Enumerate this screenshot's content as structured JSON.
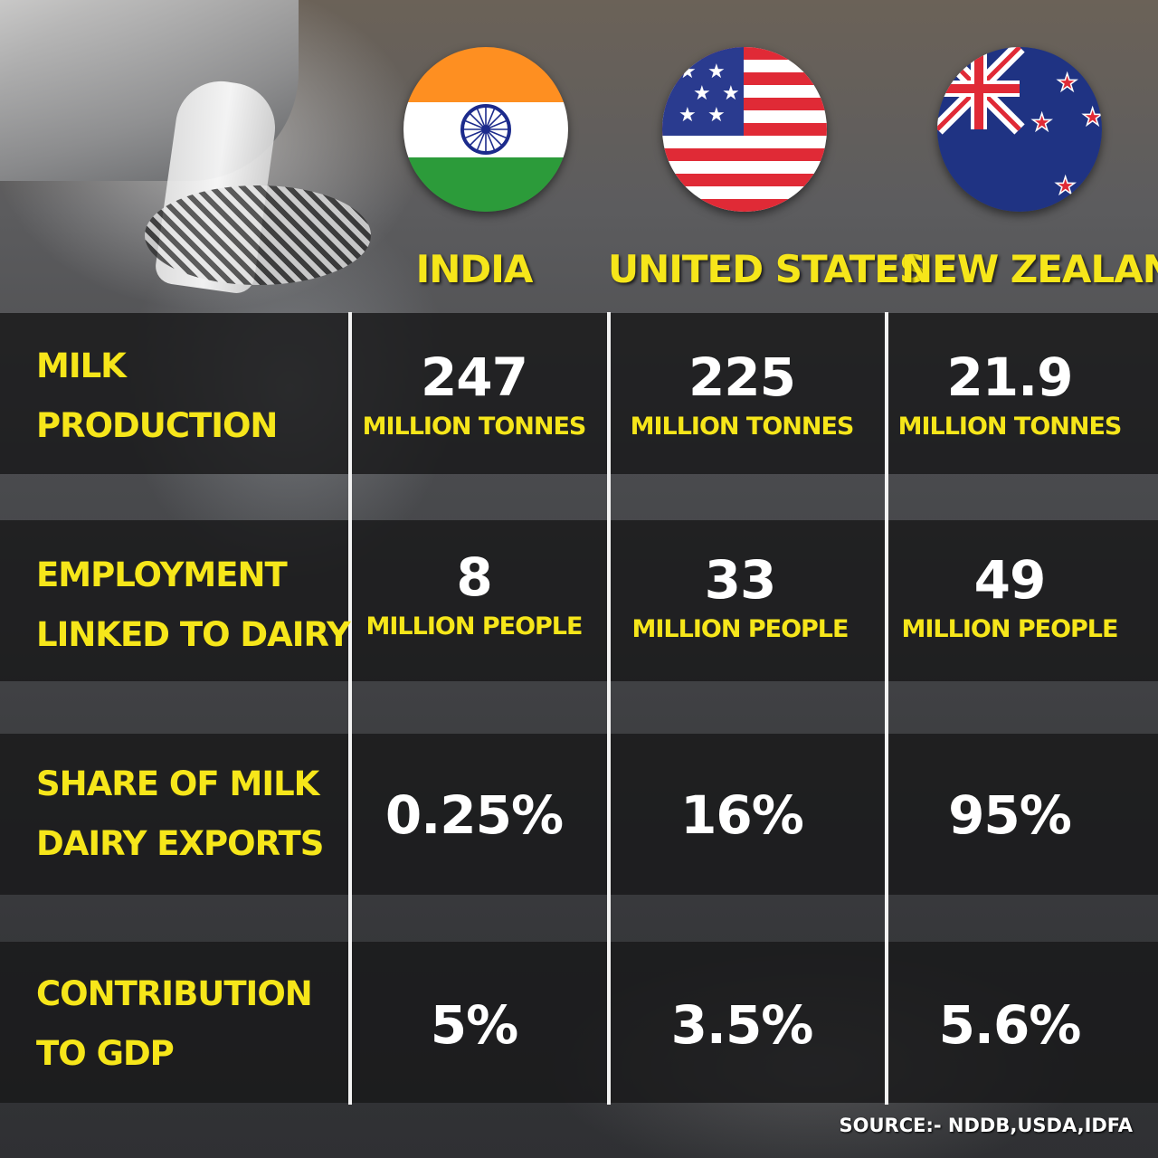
{
  "countries": [
    {
      "name": "INDIA",
      "flag_icon": "india-flag-icon"
    },
    {
      "name": "UNITED STATES",
      "flag_icon": "us-flag-icon"
    },
    {
      "name": "NEW ZEALAND",
      "flag_icon": "new-zealand-flag-icon"
    }
  ],
  "rows": {
    "milk_production": {
      "label_line1": "MILK",
      "label_line2": "PRODUCTION",
      "values": [
        {
          "value": "247",
          "unit": "MILLION TONNES"
        },
        {
          "value": "225",
          "unit": "MILLION TONNES"
        },
        {
          "value": "21.9",
          "unit": "MILLION TONNES"
        }
      ]
    },
    "employment": {
      "label_line1": "EMPLOYMENT",
      "label_line2": "LINKED TO DAIRY",
      "values": [
        {
          "value": "8",
          "unit": "MILLION PEOPLE"
        },
        {
          "value": "33",
          "unit": "MILLION PEOPLE"
        },
        {
          "value": "49",
          "unit": "MILLION PEOPLE"
        }
      ]
    },
    "exports": {
      "label_line1": "SHARE OF MILK",
      "label_line2": "DAIRY EXPORTS",
      "values": [
        "0.25%",
        "16%",
        "95%"
      ]
    },
    "gdp": {
      "label_line1": "CONTRIBUTION",
      "label_line2": "TO GDP",
      "values": [
        "5%",
        "3.5%",
        "5.6%"
      ]
    }
  },
  "source": "SOURCE:- NDDB,USDA,IDFA",
  "colors": {
    "accent": "#f6e61a",
    "value_text": "#ffffff",
    "row_bg": "#18181a"
  }
}
